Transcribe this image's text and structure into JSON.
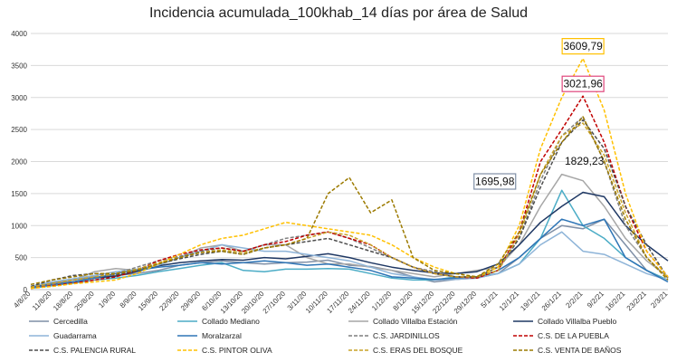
{
  "chart_data": {
    "type": "line",
    "title": "Incidencia acumulada_100khab_14 días por área de Salud",
    "ylim": [
      0,
      4000
    ],
    "yticks": [
      0,
      500,
      1000,
      1500,
      2000,
      2500,
      3000,
      3500,
      4000
    ],
    "categories": [
      "4/8/20",
      "11/8/20",
      "18/8/20",
      "25/8/20",
      "1/9/20",
      "8/9/20",
      "15/9/20",
      "22/9/20",
      "29/9/20",
      "6/10/20",
      "13/10/20",
      "20/10/20",
      "27/10/20",
      "3/11/20",
      "10/11/20",
      "17/11/20",
      "24/11/20",
      "1/12/20",
      "8/12/20",
      "15/12/20",
      "22/12/20",
      "29/12/20",
      "5/1/21",
      "12/1/21",
      "19/1/21",
      "26/1/21",
      "2/2/21",
      "9/2/21",
      "16/2/21",
      "23/2/21",
      "2/3/21"
    ],
    "grid": true,
    "legend_position": "bottom",
    "series": [
      {
        "name": "Cercedilla",
        "color": "#7f8fa6",
        "dash": "solid",
        "values": [
          30,
          100,
          150,
          200,
          220,
          250,
          300,
          380,
          420,
          450,
          420,
          400,
          420,
          430,
          460,
          380,
          360,
          300,
          200,
          120,
          160,
          180,
          250,
          500,
          800,
          1000,
          950,
          1100,
          700,
          300,
          150
        ]
      },
      {
        "name": "Collado Mediano",
        "color": "#4bacc6",
        "dash": "solid",
        "values": [
          20,
          60,
          100,
          150,
          180,
          220,
          280,
          330,
          380,
          420,
          300,
          280,
          320,
          320,
          330,
          320,
          250,
          180,
          150,
          150,
          200,
          200,
          250,
          400,
          800,
          1550,
          1000,
          800,
          500,
          300,
          150
        ]
      },
      {
        "name": "Collado Villalba Estación",
        "color": "#a6a6a6",
        "dash": "solid",
        "values": [
          30,
          80,
          150,
          280,
          330,
          300,
          380,
          500,
          650,
          700,
          600,
          700,
          700,
          500,
          400,
          400,
          350,
          300,
          250,
          200,
          250,
          300,
          350,
          700,
          1300,
          1800,
          1700,
          1300,
          800,
          450,
          200
        ]
      },
      {
        "name": "Collado Villalba Pueblo",
        "color": "#1f3864",
        "dash": "solid",
        "values": [
          40,
          80,
          120,
          180,
          210,
          280,
          370,
          420,
          450,
          470,
          460,
          500,
          480,
          520,
          560,
          500,
          420,
          350,
          300,
          260,
          250,
          280,
          400,
          700,
          1050,
          1300,
          1520,
          1450,
          1000,
          700,
          450
        ]
      },
      {
        "name": "Guadarrama",
        "color": "#8eb4d8",
        "dash": "solid",
        "values": [
          50,
          120,
          170,
          220,
          280,
          320,
          380,
          500,
          600,
          700,
          650,
          600,
          600,
          550,
          500,
          450,
          350,
          250,
          200,
          150,
          160,
          180,
          250,
          400,
          700,
          900,
          600,
          550,
          400,
          250,
          150
        ]
      },
      {
        "name": "Moralzarzal",
        "color": "#2e75b6",
        "dash": "solid",
        "values": [
          30,
          80,
          120,
          180,
          250,
          300,
          350,
          380,
          420,
          400,
          420,
          450,
          420,
          380,
          400,
          350,
          300,
          200,
          180,
          160,
          180,
          200,
          300,
          500,
          800,
          1100,
          1000,
          1100,
          500,
          300,
          120
        ]
      },
      {
        "name": "C.S. JARDINILLOS",
        "color": "#7f7f7f",
        "dash": "dashed",
        "values": [
          30,
          80,
          150,
          200,
          250,
          350,
          450,
          520,
          600,
          650,
          600,
          700,
          800,
          850,
          900,
          800,
          650,
          500,
          350,
          280,
          200,
          180,
          300,
          800,
          1700,
          2400,
          2700,
          2000,
          1000,
          500,
          180
        ]
      },
      {
        "name": "C.S. DE LA PUEBLA",
        "color": "#c00000",
        "dash": "dashed",
        "values": [
          20,
          60,
          100,
          150,
          200,
          300,
          450,
          550,
          620,
          650,
          600,
          700,
          750,
          850,
          900,
          800,
          700,
          500,
          350,
          250,
          200,
          180,
          300,
          900,
          2000,
          2500,
          3021.96,
          2300,
          1300,
          600,
          200
        ]
      },
      {
        "name": "C.S. PALENCIA RURAL",
        "color": "#4d4d4d",
        "dash": "dashed",
        "values": [
          50,
          150,
          220,
          250,
          230,
          300,
          400,
          480,
          550,
          600,
          550,
          650,
          700,
          750,
          800,
          700,
          600,
          500,
          350,
          250,
          200,
          200,
          350,
          800,
          1600,
          2300,
          2650,
          2200,
          1300,
          700,
          180
        ]
      },
      {
        "name": "C.S. PINTOR OLIVA",
        "color": "#ffc000",
        "dash": "dashed",
        "values": [
          20,
          50,
          90,
          120,
          150,
          250,
          400,
          550,
          700,
          800,
          850,
          950,
          1050,
          1000,
          950,
          900,
          850,
          700,
          500,
          350,
          250,
          200,
          350,
          1000,
          2200,
          3000,
          3609.79,
          2800,
          1500,
          600,
          200
        ]
      },
      {
        "name": "C.S. ERAS DEL BOSQUE",
        "color": "#c9a227",
        "dash": "dashed",
        "values": [
          40,
          100,
          150,
          200,
          250,
          320,
          420,
          500,
          580,
          620,
          580,
          650,
          700,
          800,
          900,
          850,
          700,
          500,
          350,
          250,
          200,
          200,
          300,
          850,
          1800,
          2400,
          2600,
          2100,
          1200,
          500,
          180
        ]
      },
      {
        "name": "C.S. VENTA DE BAÑOS",
        "color": "#9c7a00",
        "dash": "dashed",
        "values": [
          80,
          150,
          200,
          250,
          250,
          300,
          400,
          500,
          580,
          600,
          550,
          650,
          700,
          800,
          1500,
          1750,
          1200,
          1400,
          500,
          300,
          250,
          200,
          400,
          900,
          1800,
          2300,
          2700,
          2000,
          1100,
          500,
          150
        ]
      }
    ],
    "annotations": [
      {
        "text": "1695,98",
        "category": "12/1/21",
        "value": 1695.98,
        "border": "#7f8fa6"
      },
      {
        "text": "1829,23",
        "category": "26/1/21",
        "value": 1829.23,
        "border": "none"
      },
      {
        "text": "3021,96",
        "category": "2/2/21",
        "value": 3021.96,
        "border": "#e0457b"
      },
      {
        "text": "3609,79",
        "category": "2/2/21",
        "value": 3609.79,
        "border": "#ffc000"
      }
    ]
  }
}
